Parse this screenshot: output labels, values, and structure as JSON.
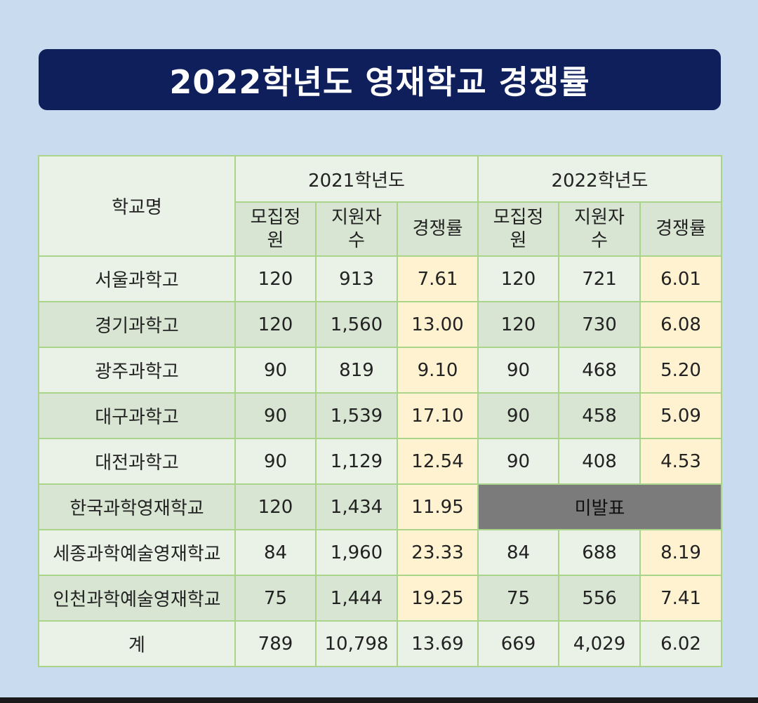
{
  "title": "2022학년도 영재학교 경쟁률",
  "table": {
    "school_header": "학교명",
    "years": [
      "2021학년도",
      "2022학년도"
    ],
    "sub_headers": [
      {
        "line1": "모집정",
        "line2": "원"
      },
      {
        "line1": "지원자",
        "line2": "수"
      },
      {
        "line1": "경쟁률",
        "line2": ""
      },
      {
        "line1": "모집정",
        "line2": "원"
      },
      {
        "line1": "지원자",
        "line2": "수"
      },
      {
        "line1": "경쟁률",
        "line2": ""
      }
    ],
    "rows": [
      {
        "school": "서울과학고",
        "q21": "120",
        "a21": "913",
        "r21": "7.61",
        "q22": "120",
        "a22": "721",
        "r22": "6.01"
      },
      {
        "school": "경기과학고",
        "q21": "120",
        "a21": "1,560",
        "r21": "13.00",
        "q22": "120",
        "a22": "730",
        "r22": "6.08"
      },
      {
        "school": "광주과학고",
        "q21": "90",
        "a21": "819",
        "r21": "9.10",
        "q22": "90",
        "a22": "468",
        "r22": "5.20"
      },
      {
        "school": "대구과학고",
        "q21": "90",
        "a21": "1,539",
        "r21": "17.10",
        "q22": "90",
        "a22": "458",
        "r22": "5.09"
      },
      {
        "school": "대전과학고",
        "q21": "90",
        "a21": "1,129",
        "r21": "12.54",
        "q22": "90",
        "a22": "408",
        "r22": "4.53"
      },
      {
        "school": "한국과학영재학교",
        "q21": "120",
        "a21": "1,434",
        "r21": "11.95",
        "unreleased": "미발표"
      },
      {
        "school": "세종과학예술영재학교",
        "q21": "84",
        "a21": "1,960",
        "r21": "23.33",
        "q22": "84",
        "a22": "688",
        "r22": "8.19"
      },
      {
        "school": "인천과학예술영재학교",
        "q21": "75",
        "a21": "1,444",
        "r21": "19.25",
        "q22": "75",
        "a22": "556",
        "r22": "7.41"
      }
    ],
    "total": {
      "school": "계",
      "q21": "789",
      "a21": "10,798",
      "r21": "13.69",
      "q22": "669",
      "a22": "4,029",
      "r22": "6.02"
    }
  }
}
